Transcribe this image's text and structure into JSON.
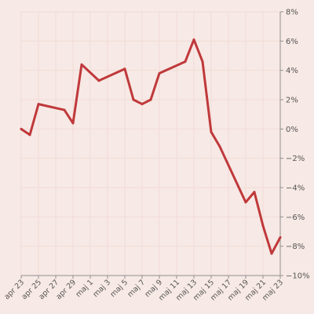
{
  "chart_data": {
    "type": "line",
    "title": "",
    "xlabel": "",
    "ylabel": "",
    "x_tick_labels": [
      "apr 23",
      "apr 25",
      "apr 27",
      "apr 29",
      "maj 1",
      "maj 3",
      "maj 5",
      "maj 7",
      "maj 9",
      "maj 11",
      "maj 13",
      "maj 15",
      "maj 17",
      "maj 19",
      "maj 21",
      "maj 23"
    ],
    "y_ticks": [
      8,
      6,
      4,
      2,
      0,
      -2,
      -4,
      -6,
      -8,
      -10
    ],
    "y_tick_labels": [
      "8%",
      "6%",
      "4%",
      "2%",
      "0%",
      "−2%",
      "−4%",
      "−6%",
      "−8%",
      "−10%"
    ],
    "ylim": [
      -10,
      8
    ],
    "y_axis_side": "right",
    "grid": true,
    "series": [
      {
        "color": "#c0393b",
        "x": [
          "apr 23",
          "apr 24",
          "apr 25",
          "apr 28",
          "apr 29",
          "apr 30",
          "maj 2",
          "maj 5",
          "maj 6",
          "maj 7",
          "maj 8",
          "maj 9",
          "maj 12",
          "maj 13",
          "maj 14",
          "maj 15",
          "maj 16",
          "maj 19",
          "maj 20",
          "maj 21",
          "maj 22",
          "maj 23"
        ],
        "xi": [
          0,
          1,
          2,
          5,
          6,
          7,
          9,
          12,
          13,
          14,
          15,
          16,
          19,
          20,
          21,
          22,
          23,
          26,
          27,
          28,
          29,
          30
        ],
        "values": [
          0.0,
          -0.4,
          1.7,
          1.3,
          0.4,
          4.4,
          3.3,
          4.1,
          2.0,
          1.7,
          2.0,
          3.8,
          4.6,
          6.1,
          4.6,
          -0.2,
          -1.2,
          -5.0,
          -4.3,
          -6.6,
          -8.5,
          -7.4
        ]
      }
    ]
  }
}
